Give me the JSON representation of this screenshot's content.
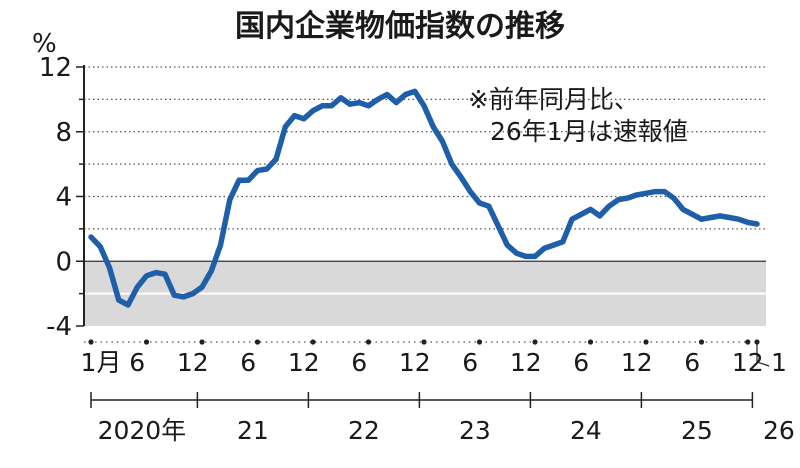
{
  "chart_data": {
    "type": "line",
    "title": "国内企業物価指数の推移",
    "ylabel": "%",
    "note_lines": [
      "※前年同月比、",
      "26年1月は速報値"
    ],
    "ylim": [
      -4,
      12
    ],
    "yticks": [
      "12",
      "8",
      "4",
      "0",
      "-4"
    ],
    "month_ticks": [
      "1月",
      "6",
      "12",
      "6",
      "12",
      "6",
      "12",
      "6",
      "12",
      "6",
      "12",
      "6",
      "12",
      "1"
    ],
    "years": [
      "2020年",
      "21",
      "22",
      "23",
      "24",
      "25",
      "26"
    ],
    "colors": {
      "line": "#1f5ea8",
      "negative_band": "#d9d9d9",
      "axis": "#222222"
    },
    "grid": true,
    "series": [
      {
        "values": [
          1.5,
          0.9,
          -0.4,
          -2.4,
          -2.7,
          -1.6,
          -0.9,
          -0.7,
          -0.8,
          -2.1,
          -2.2,
          -2.0,
          -1.6,
          -0.6,
          1.0,
          3.8,
          5.0,
          5.0,
          5.6,
          5.7,
          6.3,
          8.3,
          9.0,
          8.8,
          9.3,
          9.6,
          9.6,
          10.1,
          9.7,
          9.8,
          9.6,
          10.0,
          10.3,
          9.8,
          10.3,
          10.5,
          9.6,
          8.3,
          7.4,
          6.0,
          5.2,
          4.3,
          3.6,
          3.4,
          2.2,
          1.0,
          0.5,
          0.3,
          0.3,
          0.8,
          1.0,
          1.2,
          2.6,
          2.9,
          3.2,
          2.8,
          3.4,
          3.8,
          3.9,
          4.1,
          4.2,
          4.3,
          4.3,
          3.9,
          3.2,
          2.9,
          2.6,
          2.7,
          2.8,
          2.7,
          2.6,
          2.4,
          2.3
        ]
      }
    ]
  }
}
